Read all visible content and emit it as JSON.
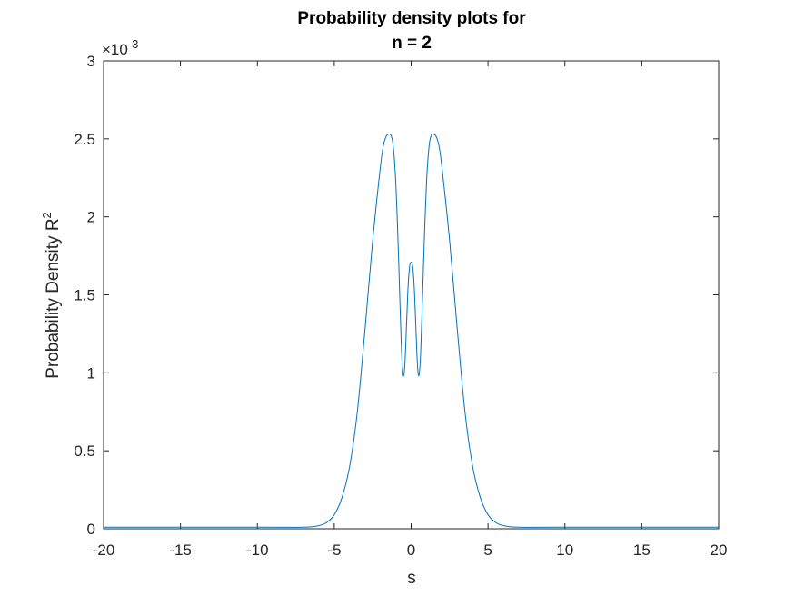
{
  "chart_data": {
    "type": "line",
    "title": [
      "Probability density plots for",
      "n = 2"
    ],
    "xlabel": "s",
    "ylabel": "Probability Density R",
    "ylabel_superscript": "2",
    "y_exponent_label": "×10",
    "y_exponent_power": "-3",
    "xlim": [
      -20,
      20
    ],
    "ylim": [
      0,
      0.003
    ],
    "x_ticks": [
      -20,
      -15,
      -10,
      -5,
      0,
      5,
      10,
      15,
      20
    ],
    "x_tick_labels": [
      "-20",
      "-15",
      "-10",
      "-5",
      "0",
      "5",
      "10",
      "15",
      "20"
    ],
    "y_ticks": [
      0,
      0.0005,
      0.001,
      0.0015,
      0.002,
      0.0025,
      0.003
    ],
    "y_tick_labels": [
      "0",
      "0.5",
      "1",
      "1.5",
      "2",
      "2.5",
      "3"
    ],
    "grid": false,
    "line_color": "#0072bd",
    "series": [
      {
        "x": [
          -20,
          -10,
          -7,
          -6,
          -5.5,
          -5,
          -4.5,
          -4,
          -3.5,
          -3,
          -2.5,
          -2,
          -1.8,
          -1.6,
          -1.4,
          -1.3,
          -1.2,
          -1.1,
          -1.0,
          -0.9,
          -0.8,
          -0.7,
          -0.6,
          -0.5,
          -0.4,
          -0.3,
          -0.2,
          -0.1,
          0,
          0.1,
          0.2,
          0.3,
          0.4,
          0.5,
          0.6,
          0.7,
          0.8,
          0.9,
          1.0,
          1.1,
          1.2,
          1.3,
          1.4,
          1.6,
          1.8,
          2,
          2.5,
          3,
          3.5,
          4,
          4.5,
          5,
          5.5,
          6,
          7,
          10,
          20
        ],
        "y": [
          1e-05,
          1e-05,
          1e-05,
          2e-05,
          4e-05,
          9e-05,
          0.0002,
          0.0004,
          0.00075,
          0.00128,
          0.00185,
          0.00232,
          0.00246,
          0.00252,
          0.00253,
          0.00252,
          0.00248,
          0.00238,
          0.00222,
          0.00198,
          0.00168,
          0.00136,
          0.00109,
          0.00098,
          0.00107,
          0.00131,
          0.00155,
          0.00168,
          0.00171,
          0.00168,
          0.00155,
          0.00131,
          0.00107,
          0.00098,
          0.00109,
          0.00136,
          0.00168,
          0.00198,
          0.00222,
          0.00238,
          0.00248,
          0.00252,
          0.00253,
          0.00252,
          0.00246,
          0.00232,
          0.00185,
          0.00128,
          0.00075,
          0.0004,
          0.0002,
          9e-05,
          4e-05,
          2e-05,
          1e-05,
          1e-05,
          1e-05
        ]
      }
    ]
  }
}
